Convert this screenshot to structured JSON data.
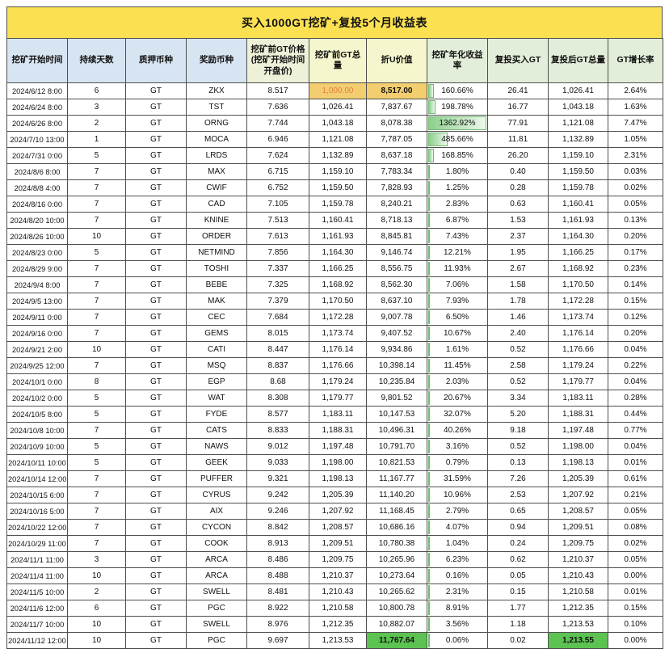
{
  "colors": {
    "title_bg": "#fbe151",
    "header_blue": "#d7e4f1",
    "header_olive": "#edf1d8",
    "header_yellow": "#f6f6ce",
    "header_green": "#e3eeda",
    "highlight_orange_bg": "#f3ce70",
    "highlight_orange_text": "#df823e",
    "highlight_green_bg": "#5cc251",
    "bar_green": "#8ccf8c",
    "bar_border": "#74b974",
    "grid_border": "#4f4f4f"
  },
  "chart_data": {
    "type": "table",
    "title": "买入1000GT挖矿+复投5个月收益表",
    "apy_bar_max": 1362.92,
    "columns": [
      {
        "key": "start",
        "label": "挖矿开始时间",
        "group": "blue"
      },
      {
        "key": "days",
        "label": "持续天数",
        "group": "blue"
      },
      {
        "key": "stake",
        "label": "质押币种",
        "group": "blue"
      },
      {
        "key": "reward",
        "label": "奖励币种",
        "group": "blue"
      },
      {
        "key": "price",
        "label": "挖矿前GT价格(挖矿开始时间开盘价)",
        "group": "olive"
      },
      {
        "key": "pre_gt",
        "label": "挖矿前GT总量",
        "group": "yellow"
      },
      {
        "key": "u_value",
        "label": "折U价值",
        "group": "yellow"
      },
      {
        "key": "apy",
        "label": "挖矿年化收益率",
        "group": "green"
      },
      {
        "key": "reinvest",
        "label": "复投买入GT",
        "group": "green"
      },
      {
        "key": "post_gt",
        "label": "复投后GT总量",
        "group": "green"
      },
      {
        "key": "growth",
        "label": "GT增长率",
        "group": "green"
      }
    ],
    "rows": [
      [
        "2024/6/12 8:00",
        "6",
        "GT",
        "ZKX",
        "8.517",
        "1,000.00",
        "8,517.00",
        "160.66%",
        "26.41",
        "1,026.41",
        "2.64%"
      ],
      [
        "2024/6/24 8:00",
        "3",
        "GT",
        "TST",
        "7.636",
        "1,026.41",
        "7,837.67",
        "198.78%",
        "16.77",
        "1,043.18",
        "1.63%"
      ],
      [
        "2024/6/26 8:00",
        "2",
        "GT",
        "ORNG",
        "7.744",
        "1,043.18",
        "8,078.38",
        "1362.92%",
        "77.91",
        "1,121.08",
        "7.47%"
      ],
      [
        "2024/7/10 13:00",
        "1",
        "GT",
        "MOCA",
        "6.946",
        "1,121.08",
        "7,787.05",
        "485.66%",
        "11.81",
        "1,132.89",
        "1.05%"
      ],
      [
        "2024/7/31 0:00",
        "5",
        "GT",
        "LRDS",
        "7.624",
        "1,132.89",
        "8,637.18",
        "168.85%",
        "26.20",
        "1,159.10",
        "2.31%"
      ],
      [
        "2024/8/6 8:00",
        "7",
        "GT",
        "MAX",
        "6.715",
        "1,159.10",
        "7,783.34",
        "1.80%",
        "0.40",
        "1,159.50",
        "0.03%"
      ],
      [
        "2024/8/8 4:00",
        "7",
        "GT",
        "CWIF",
        "6.752",
        "1,159.50",
        "7,828.93",
        "1.25%",
        "0.28",
        "1,159.78",
        "0.02%"
      ],
      [
        "2024/8/16 0:00",
        "7",
        "GT",
        "CAD",
        "7.105",
        "1,159.78",
        "8,240.21",
        "2.83%",
        "0.63",
        "1,160.41",
        "0.05%"
      ],
      [
        "2024/8/20 10:00",
        "7",
        "GT",
        "KNINE",
        "7.513",
        "1,160.41",
        "8,718.13",
        "6.87%",
        "1.53",
        "1,161.93",
        "0.13%"
      ],
      [
        "2024/8/26 10:00",
        "10",
        "GT",
        "ORDER",
        "7.613",
        "1,161.93",
        "8,845.81",
        "7.43%",
        "2.37",
        "1,164.30",
        "0.20%"
      ],
      [
        "2024/8/23 0:00",
        "5",
        "GT",
        "NETMIND",
        "7.856",
        "1,164.30",
        "9,146.74",
        "12.21%",
        "1.95",
        "1,166.25",
        "0.17%"
      ],
      [
        "2024/8/29 9:00",
        "7",
        "GT",
        "TOSHI",
        "7.337",
        "1,166.25",
        "8,556.75",
        "11.93%",
        "2.67",
        "1,168.92",
        "0.23%"
      ],
      [
        "2024/9/4 8:00",
        "7",
        "GT",
        "BEBE",
        "7.325",
        "1,168.92",
        "8,562.30",
        "7.06%",
        "1.58",
        "1,170.50",
        "0.14%"
      ],
      [
        "2024/9/5 13:00",
        "7",
        "GT",
        "MAK",
        "7.379",
        "1,170.50",
        "8,637.10",
        "7.93%",
        "1.78",
        "1,172.28",
        "0.15%"
      ],
      [
        "2024/9/11 0:00",
        "7",
        "GT",
        "CEC",
        "7.684",
        "1,172.28",
        "9,007.78",
        "6.50%",
        "1.46",
        "1,173.74",
        "0.12%"
      ],
      [
        "2024/9/16 0:00",
        "7",
        "GT",
        "GEMS",
        "8.015",
        "1,173.74",
        "9,407.52",
        "10.67%",
        "2.40",
        "1,176.14",
        "0.20%"
      ],
      [
        "2024/9/21 2:00",
        "10",
        "GT",
        "CATI",
        "8.447",
        "1,176.14",
        "9,934.86",
        "1.61%",
        "0.52",
        "1,176.66",
        "0.04%"
      ],
      [
        "2024/9/25 12:00",
        "7",
        "GT",
        "MSQ",
        "8.837",
        "1,176.66",
        "10,398.14",
        "11.45%",
        "2.58",
        "1,179.24",
        "0.22%"
      ],
      [
        "2024/10/1 0:00",
        "8",
        "GT",
        "EGP",
        "8.68",
        "1,179.24",
        "10,235.84",
        "2.03%",
        "0.52",
        "1,179.77",
        "0.04%"
      ],
      [
        "2024/10/2 0:00",
        "5",
        "GT",
        "WAT",
        "8.308",
        "1,179.77",
        "9,801.52",
        "20.67%",
        "3.34",
        "1,183.11",
        "0.28%"
      ],
      [
        "2024/10/5 8:00",
        "5",
        "GT",
        "FYDE",
        "8.577",
        "1,183.11",
        "10,147.53",
        "32.07%",
        "5.20",
        "1,188.31",
        "0.44%"
      ],
      [
        "2024/10/8 10:00",
        "7",
        "GT",
        "CATS",
        "8.833",
        "1,188.31",
        "10,496.31",
        "40.26%",
        "9.18",
        "1,197.48",
        "0.77%"
      ],
      [
        "2024/10/9 10:00",
        "5",
        "GT",
        "NAWS",
        "9.012",
        "1,197.48",
        "10,791.70",
        "3.16%",
        "0.52",
        "1,198.00",
        "0.04%"
      ],
      [
        "2024/10/11 10:00",
        "5",
        "GT",
        "GEEK",
        "9.033",
        "1,198.00",
        "10,821.53",
        "0.79%",
        "0.13",
        "1,198.13",
        "0.01%"
      ],
      [
        "2024/10/14 12:00",
        "7",
        "GT",
        "PUFFER",
        "9.321",
        "1,198.13",
        "11,167.77",
        "31.59%",
        "7.26",
        "1,205.39",
        "0.61%"
      ],
      [
        "2024/10/15 6:00",
        "7",
        "GT",
        "CYRUS",
        "9.242",
        "1,205.39",
        "11,140.20",
        "10.96%",
        "2.53",
        "1,207.92",
        "0.21%"
      ],
      [
        "2024/10/16 5:00",
        "7",
        "GT",
        "AIX",
        "9.246",
        "1,207.92",
        "11,168.45",
        "2.79%",
        "0.65",
        "1,208.57",
        "0.05%"
      ],
      [
        "2024/10/22 12:00",
        "7",
        "GT",
        "CYCON",
        "8.842",
        "1,208.57",
        "10,686.16",
        "4.07%",
        "0.94",
        "1,209.51",
        "0.08%"
      ],
      [
        "2024/10/29 11:00",
        "7",
        "GT",
        "COOK",
        "8.913",
        "1,209.51",
        "10,780.38",
        "1.04%",
        "0.24",
        "1,209.75",
        "0.02%"
      ],
      [
        "2024/11/1 11:00",
        "3",
        "GT",
        "ARCA",
        "8.486",
        "1,209.75",
        "10,265.96",
        "6.23%",
        "0.62",
        "1,210.37",
        "0.05%"
      ],
      [
        "2024/11/4 11:00",
        "10",
        "GT",
        "ARCA",
        "8.488",
        "1,210.37",
        "10,273.64",
        "0.16%",
        "0.05",
        "1,210.43",
        "0.00%"
      ],
      [
        "2024/11/5 10:00",
        "2",
        "GT",
        "SWELL",
        "8.481",
        "1,210.43",
        "10,265.62",
        "2.31%",
        "0.15",
        "1,210.58",
        "0.01%"
      ],
      [
        "2024/11/6 12:00",
        "6",
        "GT",
        "PGC",
        "8.922",
        "1,210.58",
        "10,800.78",
        "8.91%",
        "1.77",
        "1,212.35",
        "0.15%"
      ],
      [
        "2024/11/7 10:00",
        "10",
        "GT",
        "SWELL",
        "8.976",
        "1,212.35",
        "10,882.07",
        "3.56%",
        "1.18",
        "1,213.53",
        "0.10%"
      ],
      [
        "2024/11/12 12:00",
        "10",
        "GT",
        "PGC",
        "9.697",
        "1,213.53",
        "11,767.64",
        "0.06%",
        "0.02",
        "1,213.55",
        "0.00%"
      ]
    ],
    "highlights": [
      {
        "row": 0,
        "col": 5,
        "style": "orange-text",
        "meaning": "initial GT amount"
      },
      {
        "row": 0,
        "col": 6,
        "style": "orange",
        "meaning": "initial U value"
      },
      {
        "row": 34,
        "col": 6,
        "style": "green",
        "meaning": "final U value"
      },
      {
        "row": 34,
        "col": 9,
        "style": "green",
        "meaning": "final GT total"
      }
    ]
  }
}
